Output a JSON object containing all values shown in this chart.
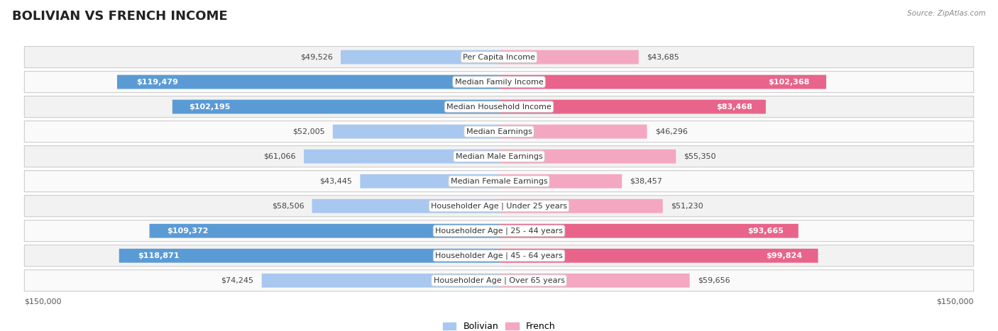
{
  "title": "BOLIVIAN VS FRENCH INCOME",
  "source": "Source: ZipAtlas.com",
  "max_value": 150000,
  "categories": [
    "Per Capita Income",
    "Median Family Income",
    "Median Household Income",
    "Median Earnings",
    "Median Male Earnings",
    "Median Female Earnings",
    "Householder Age | Under 25 years",
    "Householder Age | 25 - 44 years",
    "Householder Age | 45 - 64 years",
    "Householder Age | Over 65 years"
  ],
  "bolivian_values": [
    49526,
    119479,
    102195,
    52005,
    61066,
    43445,
    58506,
    109372,
    118871,
    74245
  ],
  "french_values": [
    43685,
    102368,
    83468,
    46296,
    55350,
    38457,
    51230,
    93665,
    99824,
    59656
  ],
  "bolivian_color_light": "#A8C8F0",
  "bolivian_color_dark": "#5B9BD5",
  "french_color_light": "#F4A7C0",
  "french_color_dark": "#E8648A",
  "row_bg_odd": "#f0f0f0",
  "row_bg_even": "#fafafa",
  "title_fontsize": 13,
  "label_fontsize": 8.0,
  "value_fontsize": 8.0,
  "legend_fontsize": 9,
  "large_threshold": 75000
}
